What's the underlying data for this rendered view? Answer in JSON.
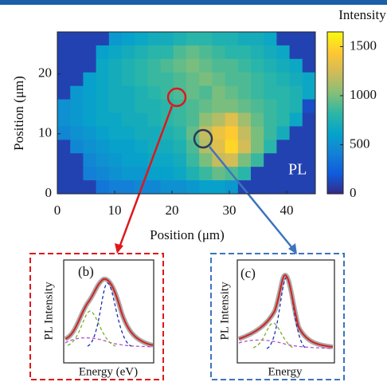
{
  "chart_data": {
    "type": "heatmap",
    "xlabel": "Position (μm)",
    "ylabel": "Position (μm)",
    "colorbar_title": "Intensity",
    "annotation": "PL",
    "xlim": [
      0,
      45
    ],
    "ylim": [
      0,
      27
    ],
    "clim": [
      0,
      1650
    ],
    "xticks": [
      0,
      10,
      20,
      30,
      40
    ],
    "yticks": [
      0,
      10,
      20
    ],
    "cticks": [
      0,
      500,
      1000,
      1500
    ],
    "colormap": [
      "#352a87",
      "#0f5cdd",
      "#1481d6",
      "#06a4ca",
      "#2eb7a4",
      "#87bf77",
      "#d1bb59",
      "#fec832",
      "#f9fb0e"
    ],
    "z": [
      [
        100,
        100,
        100,
        100,
        550,
        600,
        650,
        700,
        700,
        750,
        800,
        800,
        750,
        750,
        700,
        700,
        650,
        100,
        100,
        100
      ],
      [
        100,
        100,
        100,
        600,
        650,
        700,
        750,
        800,
        800,
        900,
        950,
        900,
        850,
        800,
        800,
        750,
        700,
        650,
        100,
        100
      ],
      [
        100,
        100,
        100,
        650,
        700,
        750,
        800,
        850,
        900,
        950,
        1000,
        950,
        900,
        900,
        850,
        800,
        750,
        700,
        650,
        100
      ],
      [
        100,
        100,
        600,
        650,
        700,
        750,
        800,
        850,
        850,
        900,
        950,
        1000,
        950,
        900,
        900,
        850,
        800,
        750,
        700,
        650
      ],
      [
        100,
        550,
        600,
        650,
        700,
        700,
        750,
        800,
        850,
        900,
        950,
        900,
        1000,
        950,
        900,
        850,
        800,
        800,
        750,
        650
      ],
      [
        500,
        550,
        600,
        650,
        700,
        700,
        750,
        750,
        800,
        850,
        900,
        950,
        1000,
        1000,
        950,
        900,
        850,
        800,
        750,
        150
      ],
      [
        500,
        550,
        600,
        650,
        650,
        700,
        700,
        750,
        800,
        850,
        900,
        1050,
        1150,
        1300,
        1100,
        950,
        850,
        800,
        650,
        100
      ],
      [
        450,
        500,
        550,
        600,
        650,
        650,
        700,
        700,
        750,
        800,
        950,
        1200,
        1350,
        1450,
        1200,
        1000,
        850,
        700,
        100,
        100
      ],
      [
        100,
        450,
        500,
        550,
        600,
        600,
        650,
        700,
        700,
        750,
        900,
        1150,
        1300,
        1500,
        1250,
        1000,
        800,
        100,
        100,
        100
      ],
      [
        100,
        100,
        450,
        500,
        550,
        600,
        600,
        650,
        650,
        700,
        850,
        1000,
        1200,
        1250,
        1000,
        850,
        100,
        100,
        100,
        100
      ],
      [
        100,
        100,
        400,
        450,
        500,
        550,
        550,
        600,
        600,
        650,
        750,
        850,
        950,
        900,
        800,
        100,
        100,
        100,
        100,
        100
      ],
      [
        100,
        100,
        100,
        350,
        400,
        400,
        450,
        450,
        500,
        500,
        550,
        600,
        600,
        550,
        100,
        100,
        100,
        100,
        100,
        100
      ]
    ],
    "insets": [
      {
        "label": "(b)",
        "ylabel": "PL Intensity",
        "xlabel": "Energy (eV)"
      },
      {
        "label": "(c)",
        "ylabel": "PL Intensity",
        "xlabel": "Energy"
      }
    ]
  }
}
